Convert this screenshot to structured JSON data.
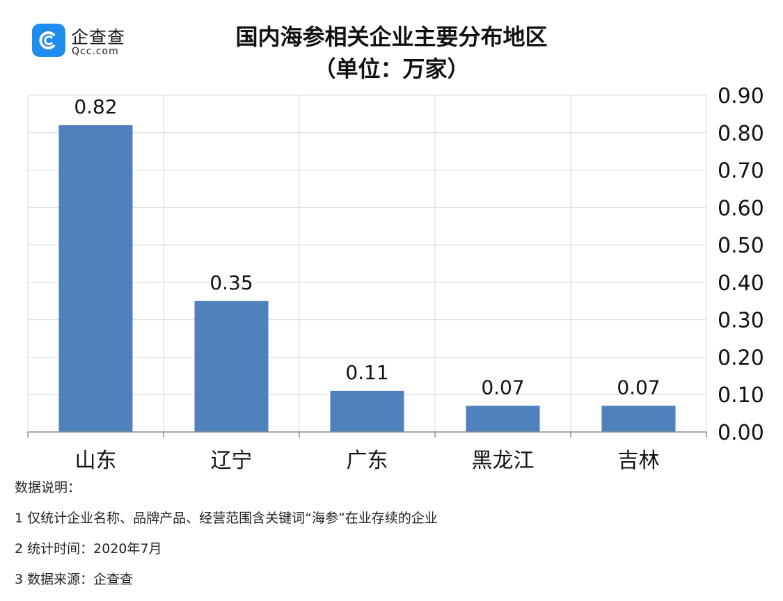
{
  "logo": {
    "name": "企查查",
    "domain": "Qcc.com"
  },
  "title": "国内海参相关企业主要分布地区",
  "subtitle": "（单位：万家）",
  "chart_data": {
    "type": "bar",
    "categories": [
      "山东",
      "辽宁",
      "广东",
      "黑龙江",
      "吉林"
    ],
    "values": [
      0.82,
      0.35,
      0.11,
      0.07,
      0.07
    ],
    "value_labels": [
      "0.82",
      "0.35",
      "0.11",
      "0.07",
      "0.07"
    ],
    "ylim": [
      0,
      0.9
    ],
    "yticks": [
      "0.00",
      "0.10",
      "0.20",
      "0.30",
      "0.40",
      "0.50",
      "0.60",
      "0.70",
      "0.80",
      "0.90"
    ],
    "yaxis_position": "right",
    "grid": true,
    "bar_color": "#4f81bd",
    "grid_color": "#d9d9d9"
  },
  "notes": {
    "heading": "数据说明：",
    "items": [
      "1 仅统计企业名称、品牌产品、经营范围含关键词“海参”在业存续的企业",
      "2 统计时间：2020年7月",
      "3 数据来源：企查查"
    ]
  }
}
